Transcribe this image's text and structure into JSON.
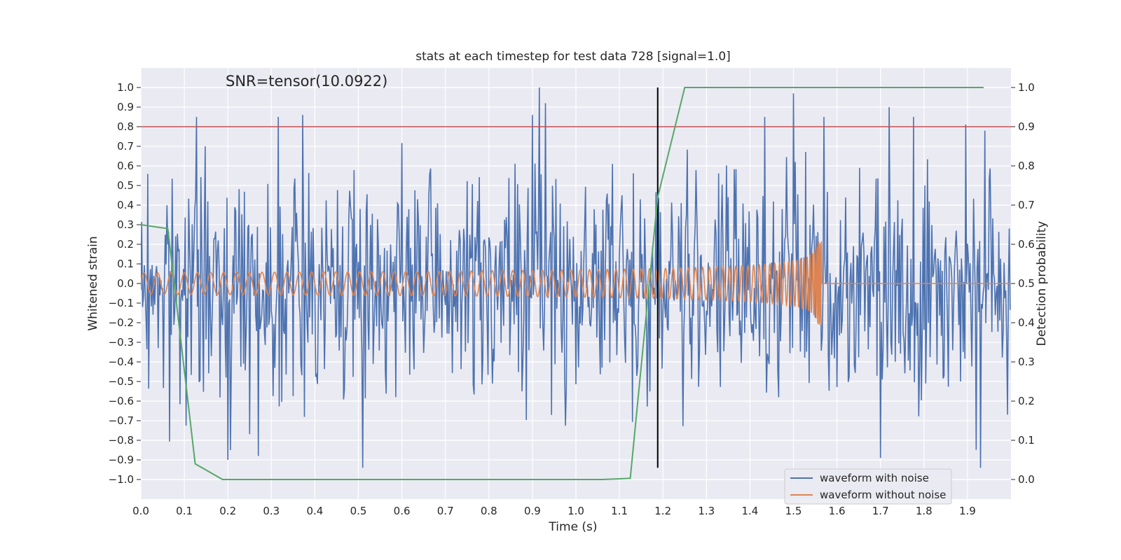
{
  "chart_data": {
    "type": "line",
    "title": "stats at each timestep for test data 728 [signal=1.0]",
    "xlabel": "Time (s)",
    "ylabel": "Whitened strain",
    "y2label": "Detection probability",
    "annotation": "SNR=tensor(10.0922)",
    "xlim": [
      0.0,
      2.0
    ],
    "ylim": [
      -1.1,
      1.1
    ],
    "y2lim": [
      -0.05,
      1.05
    ],
    "xticks": [
      "0.0",
      "0.1",
      "0.2",
      "0.3",
      "0.4",
      "0.5",
      "0.6",
      "0.7",
      "0.8",
      "0.9",
      "1.0",
      "1.1",
      "1.2",
      "1.3",
      "1.4",
      "1.5",
      "1.6",
      "1.7",
      "1.8",
      "1.9"
    ],
    "yticks": [
      "1.0",
      "0.9",
      "0.8",
      "0.7",
      "0.6",
      "0.5",
      "0.4",
      "0.3",
      "0.2",
      "0.1",
      "0.0",
      "−0.1",
      "−0.2",
      "−0.3",
      "−0.4",
      "−0.5",
      "−0.6",
      "−0.7",
      "−0.8",
      "−0.9",
      "−1.0"
    ],
    "y2ticks": [
      "1.0",
      "0.9",
      "0.8",
      "0.7",
      "0.6",
      "0.5",
      "0.4",
      "0.3",
      "0.2",
      "0.1",
      "0.0"
    ],
    "grid": true,
    "legend_position": "lower-right",
    "colors": {
      "background": "#eaeaf2",
      "grid": "#ffffff",
      "noise": "#4c72b0",
      "clean": "#dd8452",
      "probability": "#55a868",
      "threshold": "#c44e52",
      "merger": "#000000"
    },
    "series": [
      {
        "name": "waveform with noise",
        "axis": "left",
        "description_values": {
          "kind": "dense noisy strain",
          "sample_count": 1000,
          "typical_range": [
            -0.6,
            0.6
          ],
          "extremes": [
            -0.94,
            1.0
          ],
          "peaks": [
            {
              "x": 0.372,
              "y": 0.86
            },
            {
              "x": 0.9,
              "y": 0.86
            },
            {
              "x": 0.916,
              "y": 1.0
            },
            {
              "x": 0.93,
              "y": 0.92
            },
            {
              "x": 1.5,
              "y": 0.97
            },
            {
              "x": 1.72,
              "y": 0.9
            },
            {
              "x": 1.94,
              "y": 0.78
            }
          ],
          "troughs": [
            {
              "x": 0.2,
              "y": -0.9
            },
            {
              "x": 0.27,
              "y": -0.88
            },
            {
              "x": 0.51,
              "y": -0.94
            },
            {
              "x": 1.7,
              "y": -0.89
            },
            {
              "x": 1.93,
              "y": -0.94
            }
          ]
        }
      },
      {
        "name": "waveform without noise",
        "axis": "left",
        "description_values": {
          "kind": "chirp",
          "amplitude_at_start": 0.055,
          "amplitude_at_1.1s": 0.1,
          "amplitude_peak": 0.25,
          "peak_time": 1.555,
          "ends_at": 1.565,
          "after_end_value": 0.0
        }
      },
      {
        "name": "detection probability",
        "axis": "right",
        "x": [
          0.0,
          0.062,
          0.125,
          0.188,
          1.06,
          1.125,
          1.188,
          1.25,
          1.937
        ],
        "values": [
          0.65,
          0.64,
          0.04,
          0.0,
          0.0,
          0.003,
          0.72,
          1.0,
          1.0
        ]
      }
    ],
    "threshold_line": {
      "axis": "right",
      "value": 0.9
    },
    "merger_line": {
      "x": 1.188,
      "ymin": -0.94,
      "ymax": 1.0
    }
  }
}
